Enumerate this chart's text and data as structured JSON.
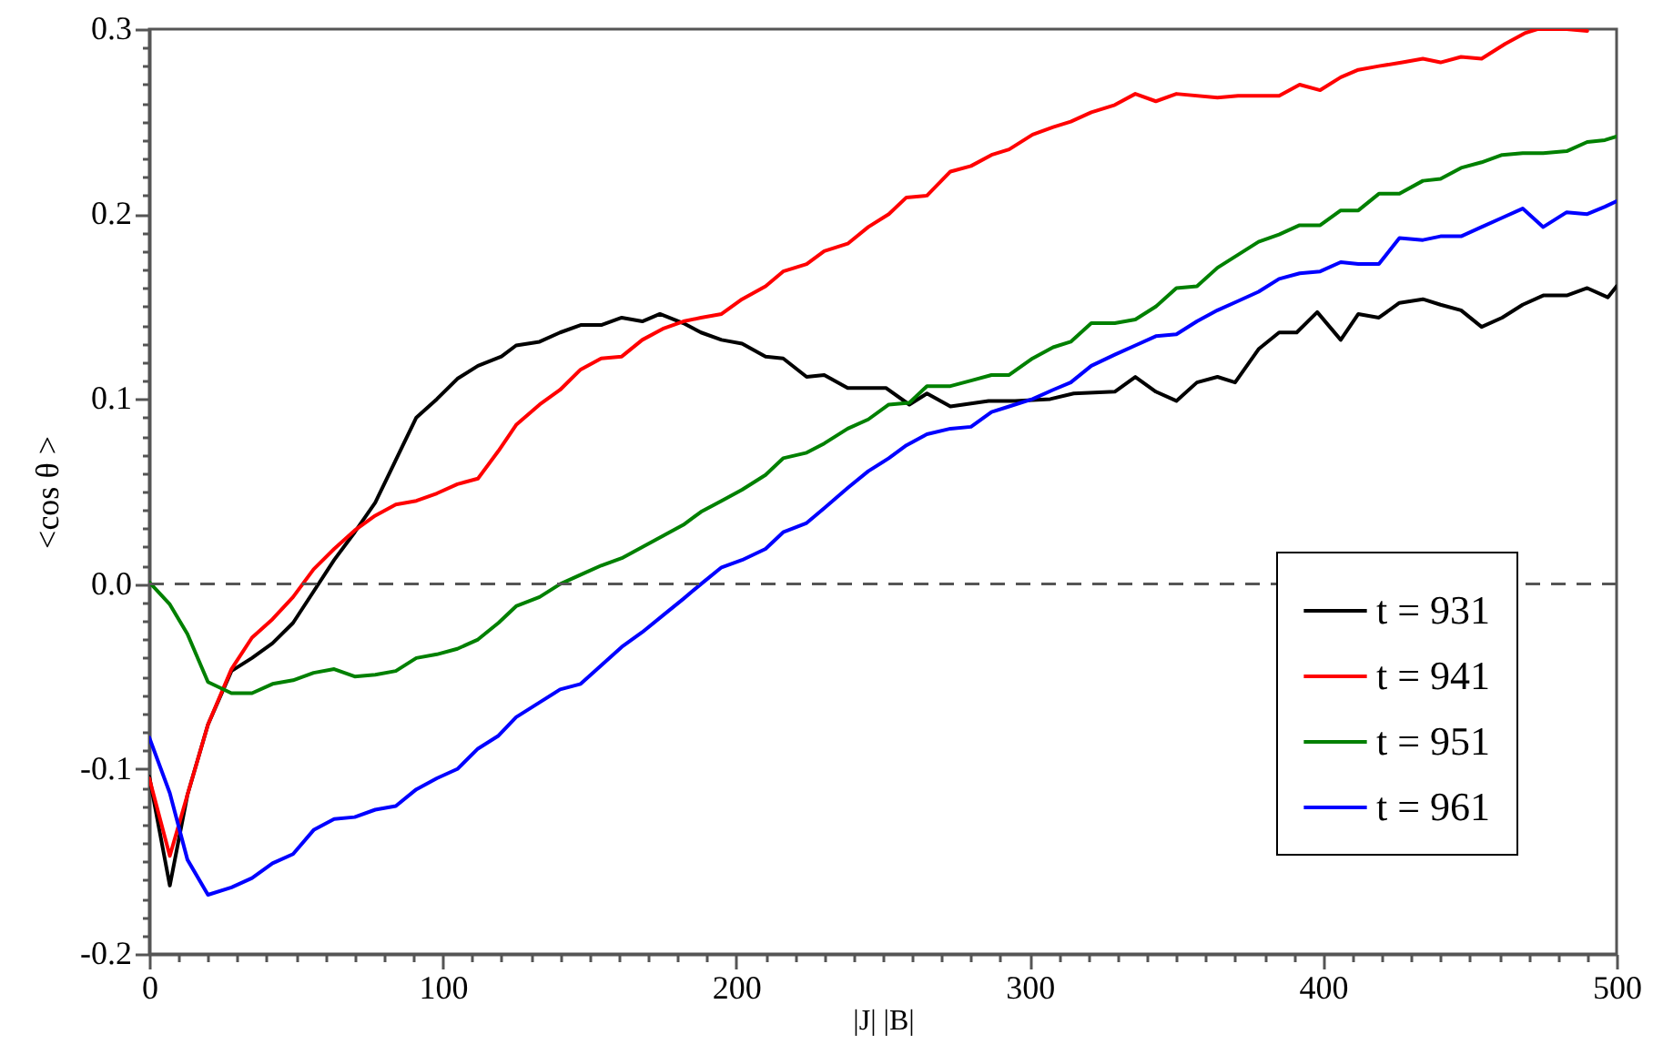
{
  "chart_data": {
    "type": "line",
    "xlabel": "|J| |B|",
    "ylabel": "<cos θ >",
    "xlim": [
      0,
      500
    ],
    "ylim": [
      -0.2,
      0.3
    ],
    "xticks": [
      0,
      {
        "value": 10,
        "label": null
      },
      {
        "value": 20,
        "label": null
      },
      {
        "value": 30,
        "label": null
      },
      {
        "value": 40,
        "label": null
      },
      {
        "value": 50,
        "label": null
      },
      {
        "value": 60,
        "label": null
      },
      {
        "value": 70,
        "label": null
      },
      {
        "value": 80,
        "label": null
      },
      {
        "value": 90,
        "label": null
      },
      100,
      {
        "value": 110,
        "label": null
      },
      {
        "value": 120,
        "label": null
      },
      {
        "value": 130,
        "label": null
      },
      {
        "value": 140,
        "label": null
      },
      {
        "value": 150,
        "label": null
      },
      {
        "value": 160,
        "label": null
      },
      {
        "value": 170,
        "label": null
      },
      {
        "value": 180,
        "label": null
      },
      {
        "value": 190,
        "label": null
      },
      200,
      {
        "value": 210,
        "label": null
      },
      {
        "value": 220,
        "label": null
      },
      {
        "value": 230,
        "label": null
      },
      {
        "value": 240,
        "label": null
      },
      {
        "value": 250,
        "label": null
      },
      {
        "value": 260,
        "label": null
      },
      {
        "value": 270,
        "label": null
      },
      {
        "value": 280,
        "label": null
      },
      {
        "value": 290,
        "label": null
      },
      300,
      {
        "value": 310,
        "label": null
      },
      {
        "value": 320,
        "label": null
      },
      {
        "value": 330,
        "label": null
      },
      {
        "value": 340,
        "label": null
      },
      {
        "value": 350,
        "label": null
      },
      {
        "value": 360,
        "label": null
      },
      {
        "value": 370,
        "label": null
      },
      {
        "value": 380,
        "label": null
      },
      {
        "value": 390,
        "label": null
      },
      400,
      {
        "value": 410,
        "label": null
      },
      {
        "value": 420,
        "label": null
      },
      {
        "value": 430,
        "label": null
      },
      {
        "value": 440,
        "label": null
      },
      {
        "value": 450,
        "label": null
      },
      {
        "value": 460,
        "label": null
      },
      {
        "value": 470,
        "label": null
      },
      {
        "value": 480,
        "label": null
      },
      {
        "value": 490,
        "label": null
      },
      500
    ],
    "yticks": [
      -0.2,
      {
        "value": -0.19,
        "label": null
      },
      {
        "value": -0.18,
        "label": null
      },
      {
        "value": -0.17,
        "label": null
      },
      {
        "value": -0.16,
        "label": null
      },
      {
        "value": -0.15,
        "label": null
      },
      {
        "value": -0.14,
        "label": null
      },
      {
        "value": -0.13,
        "label": null
      },
      {
        "value": -0.12,
        "label": null
      },
      {
        "value": -0.11,
        "label": null
      },
      -0.1,
      {
        "value": -0.09,
        "label": null
      },
      {
        "value": -0.08,
        "label": null
      },
      {
        "value": -0.07,
        "label": null
      },
      {
        "value": -0.06,
        "label": null
      },
      {
        "value": -0.05,
        "label": null
      },
      {
        "value": -0.04,
        "label": null
      },
      {
        "value": -0.03,
        "label": null
      },
      {
        "value": -0.02,
        "label": null
      },
      {
        "value": -0.01,
        "label": null
      },
      {
        "value": 0,
        "label": "0.0"
      },
      {
        "value": 0.01,
        "label": null
      },
      {
        "value": 0.02,
        "label": null
      },
      {
        "value": 0.03,
        "label": null
      },
      {
        "value": 0.04,
        "label": null
      },
      {
        "value": 0.05,
        "label": null
      },
      {
        "value": 0.06,
        "label": null
      },
      {
        "value": 0.07,
        "label": null
      },
      {
        "value": 0.08,
        "label": null
      },
      {
        "value": 0.09,
        "label": null
      },
      0.1,
      {
        "value": 0.11,
        "label": null
      },
      {
        "value": 0.12,
        "label": null
      },
      {
        "value": 0.13,
        "label": null
      },
      {
        "value": 0.14,
        "label": null
      },
      {
        "value": 0.15,
        "label": null
      },
      {
        "value": 0.16,
        "label": null
      },
      {
        "value": 0.17,
        "label": null
      },
      {
        "value": 0.18,
        "label": null
      },
      {
        "value": 0.19,
        "label": null
      },
      0.2,
      {
        "value": 0.21,
        "label": null
      },
      {
        "value": 0.22,
        "label": null
      },
      {
        "value": 0.23,
        "label": null
      },
      {
        "value": 0.24,
        "label": null
      },
      {
        "value": 0.25,
        "label": null
      },
      {
        "value": 0.26,
        "label": null
      },
      {
        "value": 0.27,
        "label": null
      },
      {
        "value": 0.28,
        "label": null
      },
      {
        "value": 0.29,
        "label": null
      },
      0.3
    ],
    "legend": "bottom right",
    "line_style": "solid",
    "ref_lines": [
      {
        "axis": "y",
        "value": 0,
        "color": "#555555",
        "line_style": "dashed"
      }
    ],
    "series": [
      {
        "name": "t = 931",
        "color": "#000000",
        "x": [
          0,
          7,
          13,
          20,
          28,
          35,
          42,
          49,
          56,
          63,
          70,
          77,
          84,
          91,
          98,
          105,
          112,
          120,
          125,
          133,
          140,
          147,
          154,
          161,
          168,
          174,
          182,
          188,
          195,
          202,
          210,
          216,
          224,
          230,
          238,
          251,
          259,
          265,
          273,
          286,
          295,
          307,
          315,
          329,
          336,
          343,
          350,
          357,
          364,
          370,
          378,
          385,
          391,
          398,
          406,
          412,
          419,
          426,
          434,
          440,
          447,
          454,
          461,
          468,
          475,
          483,
          490,
          497,
          500
        ],
        "values": [
          -0.104,
          -0.163,
          -0.114,
          -0.076,
          -0.047,
          -0.04,
          -0.032,
          -0.021,
          -0.004,
          0.013,
          0.028,
          0.044,
          0.067,
          0.09,
          0.1,
          0.111,
          0.118,
          0.123,
          0.129,
          0.131,
          0.136,
          0.14,
          0.14,
          0.144,
          0.142,
          0.146,
          0.141,
          0.136,
          0.132,
          0.13,
          0.123,
          0.122,
          0.112,
          0.113,
          0.106,
          0.106,
          0.097,
          0.103,
          0.096,
          0.099,
          0.099,
          0.1,
          0.103,
          0.104,
          0.112,
          0.104,
          0.099,
          0.109,
          0.112,
          0.109,
          0.127,
          0.136,
          0.136,
          0.147,
          0.132,
          0.146,
          0.144,
          0.152,
          0.154,
          0.151,
          0.148,
          0.139,
          0.144,
          0.151,
          0.156,
          0.156,
          0.16,
          0.155,
          0.161
        ]
      },
      {
        "name": "t = 941",
        "color": "#ff0000",
        "x": [
          0,
          7,
          13,
          20,
          28,
          35,
          42,
          49,
          56,
          63,
          70,
          77,
          84,
          91,
          98,
          105,
          112,
          119,
          125,
          133,
          140,
          147,
          154,
          161,
          168,
          175,
          182,
          188,
          195,
          202,
          210,
          216,
          224,
          230,
          238,
          245,
          252,
          258,
          265,
          273,
          280,
          287,
          293,
          301,
          308,
          314,
          321,
          329,
          336,
          343,
          350,
          364,
          371,
          385,
          392,
          399,
          406,
          412,
          419,
          427,
          434,
          440,
          447,
          454,
          462,
          469,
          473,
          483,
          490
        ],
        "values": [
          -0.105,
          -0.147,
          -0.114,
          -0.076,
          -0.046,
          -0.029,
          -0.019,
          -0.007,
          0.008,
          0.019,
          0.029,
          0.037,
          0.043,
          0.045,
          0.049,
          0.054,
          0.057,
          0.072,
          0.086,
          0.097,
          0.105,
          0.116,
          0.122,
          0.123,
          0.132,
          0.138,
          0.142,
          0.144,
          0.146,
          0.154,
          0.161,
          0.169,
          0.173,
          0.18,
          0.184,
          0.193,
          0.2,
          0.209,
          0.21,
          0.223,
          0.226,
          0.232,
          0.235,
          0.243,
          0.247,
          0.25,
          0.255,
          0.259,
          0.265,
          0.261,
          0.265,
          0.263,
          0.264,
          0.264,
          0.27,
          0.267,
          0.274,
          0.278,
          0.28,
          0.282,
          0.284,
          0.282,
          0.285,
          0.284,
          0.292,
          0.298,
          0.3,
          0.3,
          0.299
        ]
      },
      {
        "name": "t = 951",
        "color": "#008000",
        "x": [
          0,
          7,
          13,
          20,
          28,
          35,
          42,
          49,
          56,
          63,
          70,
          77,
          84,
          91,
          98,
          105,
          112,
          119,
          125,
          133,
          140,
          147,
          154,
          161,
          168,
          175,
          182,
          188,
          195,
          202,
          210,
          216,
          224,
          230,
          238,
          245,
          252,
          259,
          265,
          273,
          280,
          287,
          293,
          301,
          308,
          314,
          321,
          329,
          336,
          343,
          350,
          357,
          364,
          371,
          378,
          385,
          392,
          399,
          406,
          412,
          419,
          426,
          434,
          440,
          447,
          454,
          461,
          468,
          475,
          483,
          490,
          496,
          500
        ],
        "values": [
          0.001,
          -0.011,
          -0.027,
          -0.053,
          -0.059,
          -0.059,
          -0.054,
          -0.052,
          -0.048,
          -0.046,
          -0.05,
          -0.049,
          -0.047,
          -0.04,
          -0.038,
          -0.035,
          -0.03,
          -0.021,
          -0.012,
          -0.007,
          0.0,
          0.005,
          0.01,
          0.014,
          0.02,
          0.026,
          0.032,
          0.039,
          0.045,
          0.051,
          0.059,
          0.068,
          0.071,
          0.076,
          0.084,
          0.089,
          0.097,
          0.098,
          0.107,
          0.107,
          0.11,
          0.113,
          0.113,
          0.122,
          0.128,
          0.131,
          0.141,
          0.141,
          0.143,
          0.15,
          0.16,
          0.161,
          0.171,
          0.178,
          0.185,
          0.189,
          0.194,
          0.194,
          0.202,
          0.202,
          0.211,
          0.211,
          0.218,
          0.219,
          0.225,
          0.228,
          0.232,
          0.233,
          0.233,
          0.234,
          0.239,
          0.24,
          0.242
        ]
      },
      {
        "name": "t = 961",
        "color": "#0000ff",
        "x": [
          0,
          7,
          13,
          20,
          28,
          35,
          42,
          49,
          56,
          63,
          70,
          77,
          84,
          91,
          98,
          105,
          112,
          119,
          125,
          133,
          140,
          147,
          154,
          161,
          168,
          175,
          182,
          188,
          195,
          202,
          210,
          216,
          224,
          230,
          238,
          245,
          252,
          258,
          265,
          273,
          280,
          287,
          293,
          301,
          308,
          314,
          321,
          329,
          336,
          343,
          350,
          357,
          364,
          371,
          378,
          385,
          392,
          399,
          406,
          412,
          419,
          426,
          434,
          440,
          447,
          454,
          461,
          468,
          475,
          483,
          490,
          496,
          500
        ],
        "values": [
          -0.083,
          -0.113,
          -0.149,
          -0.168,
          -0.164,
          -0.159,
          -0.151,
          -0.146,
          -0.133,
          -0.127,
          -0.126,
          -0.122,
          -0.12,
          -0.111,
          -0.105,
          -0.1,
          -0.089,
          -0.082,
          -0.072,
          -0.064,
          -0.057,
          -0.054,
          -0.044,
          -0.034,
          -0.026,
          -0.017,
          -0.008,
          0.0,
          0.009,
          0.013,
          0.019,
          0.028,
          0.033,
          0.041,
          0.052,
          0.061,
          0.068,
          0.075,
          0.081,
          0.084,
          0.085,
          0.093,
          0.096,
          0.1,
          0.105,
          0.109,
          0.118,
          0.124,
          0.129,
          0.134,
          0.135,
          0.142,
          0.148,
          0.153,
          0.158,
          0.165,
          0.168,
          0.169,
          0.174,
          0.173,
          0.173,
          0.187,
          0.186,
          0.188,
          0.188,
          0.193,
          0.198,
          0.203,
          0.193,
          0.201,
          0.2,
          0.204,
          0.207
        ]
      }
    ]
  }
}
